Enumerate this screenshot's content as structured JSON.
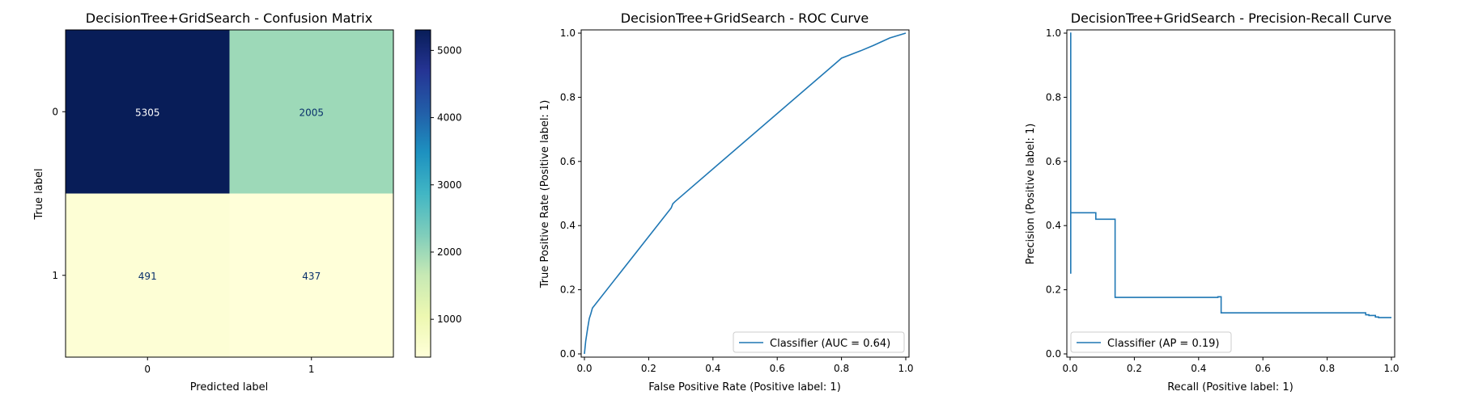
{
  "chart_data": [
    {
      "type": "heatmap",
      "title": "DecisionTree+GridSearch - Confusion Matrix",
      "xlabel": "Predicted label",
      "ylabel": "True label",
      "x_categories": [
        "0",
        "1"
      ],
      "y_categories": [
        "0",
        "1"
      ],
      "matrix": [
        [
          5305,
          2005
        ],
        [
          491,
          437
        ]
      ],
      "colormap": "YlGnBu",
      "colorbar": {
        "min": 437,
        "max": 5305,
        "ticks": [
          1000,
          2000,
          3000,
          4000,
          5000
        ]
      }
    },
    {
      "type": "line",
      "title": "DecisionTree+GridSearch - ROC Curve",
      "xlabel": "False Positive Rate (Positive label: 1)",
      "ylabel": "True Positive Rate (Positive label: 1)",
      "xlim": [
        0,
        1
      ],
      "ylim": [
        0,
        1
      ],
      "xticks": [
        "0.0",
        "0.2",
        "0.4",
        "0.6",
        "0.8",
        "1.0"
      ],
      "yticks": [
        "0.0",
        "0.2",
        "0.4",
        "0.6",
        "0.8",
        "1.0"
      ],
      "legend_position": "lower-right",
      "series": [
        {
          "name": "Classifier (AUC = 0.64)",
          "color": "#1f77b4",
          "x": [
            0.0,
            0.004,
            0.01,
            0.015,
            0.02,
            0.025,
            0.27,
            0.275,
            0.282,
            0.79,
            0.8,
            0.86,
            0.9,
            0.95,
            1.0
          ],
          "y": [
            0.0,
            0.04,
            0.08,
            0.11,
            0.125,
            0.143,
            0.455,
            0.468,
            0.475,
            0.913,
            0.922,
            0.945,
            0.962,
            0.985,
            1.0
          ]
        }
      ]
    },
    {
      "type": "line",
      "title": "DecisionTree+GridSearch - Precision-Recall Curve",
      "xlabel": "Recall (Positive label: 1)",
      "ylabel": "Precision (Positive label: 1)",
      "xlim": [
        0,
        1
      ],
      "ylim": [
        0,
        1
      ],
      "xticks": [
        "0.0",
        "0.2",
        "0.4",
        "0.6",
        "0.8",
        "1.0"
      ],
      "yticks": [
        "0.0",
        "0.2",
        "0.4",
        "0.6",
        "0.8",
        "1.0"
      ],
      "legend_position": "lower-left",
      "series": [
        {
          "name": "Classifier (AP = 0.19)",
          "color": "#1f77b4",
          "step": "post",
          "x": [
            0.0,
            0.002,
            0.002,
            0.002,
            0.002,
            0.004,
            0.004,
            0.08,
            0.08,
            0.14,
            0.14,
            0.46,
            0.46,
            0.47,
            0.47,
            0.92,
            0.92,
            0.93,
            0.93,
            0.95,
            0.95,
            0.96,
            0.96,
            1.0
          ],
          "y": [
            1.0,
            1.0,
            0.25,
            1.0,
            0.44,
            0.44,
            0.44,
            0.44,
            0.42,
            0.42,
            0.176,
            0.176,
            0.178,
            0.178,
            0.128,
            0.128,
            0.122,
            0.122,
            0.12,
            0.12,
            0.115,
            0.115,
            0.113,
            0.113
          ]
        }
      ]
    }
  ]
}
